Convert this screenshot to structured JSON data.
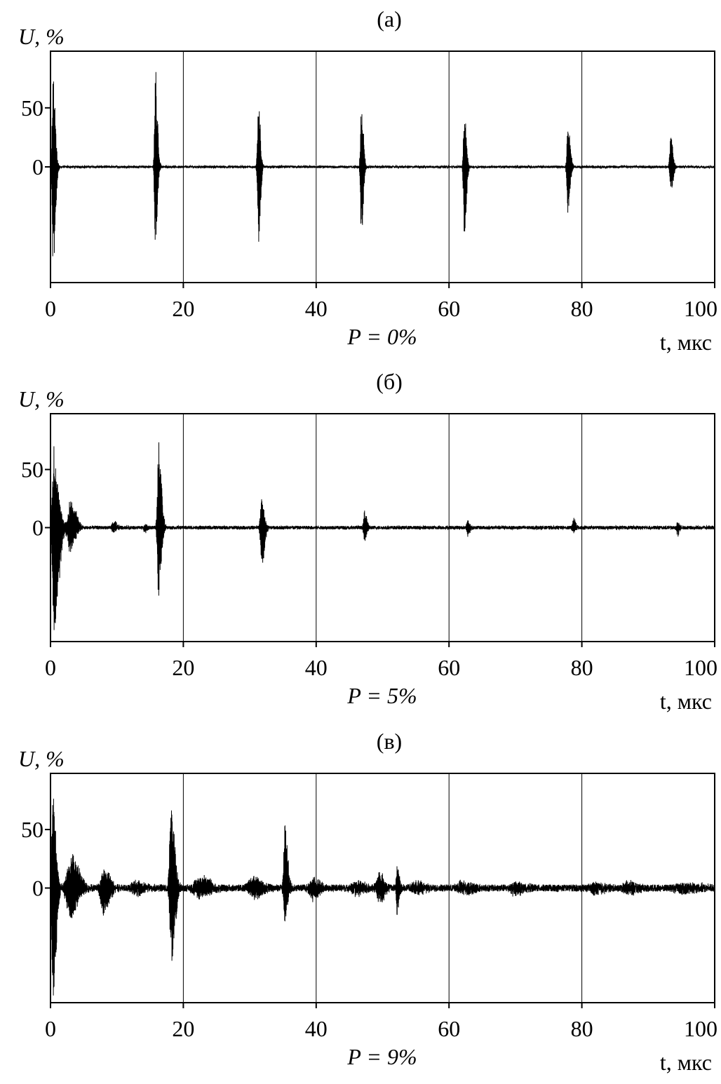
{
  "chart_data": [
    {
      "type": "line",
      "title": "(а)",
      "annotation": "P = 0%",
      "xlabel": "t, мкс",
      "ylabel": "U, %",
      "xlim": [
        0,
        100
      ],
      "ylim": [
        -98,
        98
      ],
      "xticks": [
        0,
        20,
        40,
        60,
        80,
        100
      ],
      "yticks": [
        0,
        50
      ],
      "grid": "vertical at 20, 40, 60, 80",
      "noise": 1,
      "bursts": [
        {
          "t": 0.4,
          "max": 98,
          "min": -98,
          "width": 0.5
        },
        {
          "t": 15.8,
          "max": 92,
          "min": -86,
          "width": 0.45
        },
        {
          "t": 31.3,
          "max": 73,
          "min": -80,
          "width": 0.45
        },
        {
          "t": 46.8,
          "max": 62,
          "min": -72,
          "width": 0.45
        },
        {
          "t": 62.3,
          "max": 60,
          "min": -70,
          "width": 0.45
        },
        {
          "t": 77.9,
          "max": 42,
          "min": -48,
          "width": 0.5
        },
        {
          "t": 93.4,
          "max": 30,
          "min": -25,
          "width": 0.5
        }
      ]
    },
    {
      "type": "line",
      "title": "(б)",
      "annotation": "P = 5%",
      "xlabel": "t, мкс",
      "ylabel": "U, %",
      "xlim": [
        0,
        100
      ],
      "ylim": [
        -98,
        98
      ],
      "xticks": [
        0,
        20,
        40,
        60,
        80,
        100
      ],
      "yticks": [
        0,
        50
      ],
      "grid": "vertical at 20, 40, 60, 80",
      "noise": 1.5,
      "bursts": [
        {
          "t": 0.6,
          "max": 98,
          "min": -98,
          "width": 1.0
        },
        {
          "t": 3.0,
          "max": 28,
          "min": -25,
          "width": 1.2
        },
        {
          "t": 9.5,
          "max": 6,
          "min": -6,
          "width": 0.7
        },
        {
          "t": 14.2,
          "max": 5,
          "min": -5,
          "width": 0.5
        },
        {
          "t": 16.3,
          "max": 85,
          "min": -87,
          "width": 0.6
        },
        {
          "t": 31.8,
          "max": 35,
          "min": -37,
          "width": 0.6
        },
        {
          "t": 47.3,
          "max": 15,
          "min": -15,
          "width": 0.5
        },
        {
          "t": 62.8,
          "max": 9,
          "min": -8,
          "width": 0.5
        },
        {
          "t": 78.7,
          "max": 9,
          "min": -7,
          "width": 0.5
        },
        {
          "t": 94.4,
          "max": 7,
          "min": -7,
          "width": 0.5
        }
      ]
    },
    {
      "type": "line",
      "title": "(в)",
      "annotation": "P = 9%",
      "xlabel": "t, мкс",
      "ylabel": "U, %",
      "xlim": [
        0,
        100
      ],
      "ylim": [
        -98,
        98
      ],
      "xticks": [
        0,
        20,
        40,
        60,
        80,
        100
      ],
      "yticks": [
        0,
        50
      ],
      "grid": "vertical at 20, 40, 60, 80",
      "noise": 3,
      "bursts": [
        {
          "t": 0.4,
          "max": 98,
          "min": -98,
          "width": 0.7
        },
        {
          "t": 3.0,
          "max": 32,
          "min": -32,
          "width": 1.8
        },
        {
          "t": 8.0,
          "max": 25,
          "min": -25,
          "width": 1.3
        },
        {
          "t": 13.0,
          "max": 6,
          "min": -6,
          "width": 2.0
        },
        {
          "t": 18.2,
          "max": 78,
          "min": -82,
          "width": 0.8
        },
        {
          "t": 22.5,
          "max": 10,
          "min": -10,
          "width": 2.5
        },
        {
          "t": 30.5,
          "max": 10,
          "min": -10,
          "width": 2.0
        },
        {
          "t": 35.3,
          "max": 55,
          "min": -45,
          "width": 0.6
        },
        {
          "t": 39.5,
          "max": 10,
          "min": -10,
          "width": 1.5
        },
        {
          "t": 46.0,
          "max": 6,
          "min": -6,
          "width": 2.0
        },
        {
          "t": 49.5,
          "max": 15,
          "min": -15,
          "width": 1.2
        },
        {
          "t": 52.2,
          "max": 25,
          "min": -25,
          "width": 0.5
        },
        {
          "t": 55.0,
          "max": 5,
          "min": -5,
          "width": 2.0
        },
        {
          "t": 62.0,
          "max": 5,
          "min": -5,
          "width": 2.5
        },
        {
          "t": 70.0,
          "max": 6,
          "min": -6,
          "width": 2.0
        },
        {
          "t": 82.0,
          "max": 5,
          "min": -5,
          "width": 2.0
        },
        {
          "t": 87.0,
          "max": 5,
          "min": -5,
          "width": 2.0
        },
        {
          "t": 95.0,
          "max": 4,
          "min": -4,
          "width": 4.0
        }
      ]
    }
  ]
}
